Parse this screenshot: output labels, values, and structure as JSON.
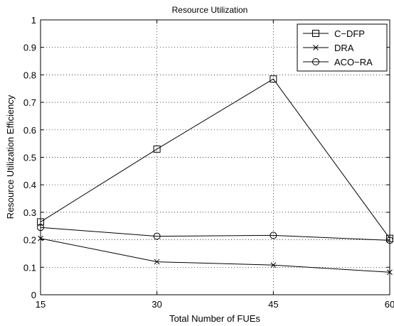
{
  "chart_data": {
    "type": "line",
    "title": "Resource Utilization",
    "xlabel": "Total Number of FUEs",
    "ylabel": "Resource Utilization Efficiency",
    "x": [
      15,
      30,
      45,
      60
    ],
    "xticks": [
      "15",
      "30",
      "45",
      "60"
    ],
    "yticks": [
      "0",
      "0.1",
      "0.2",
      "0.3",
      "0.4",
      "0.5",
      "0.6",
      "0.7",
      "0.8",
      "0.9",
      "1"
    ],
    "xlim": [
      15,
      60
    ],
    "ylim": [
      0,
      1
    ],
    "grid": true,
    "legend_position": "top-right",
    "series": [
      {
        "name": "C−DFP",
        "marker": "square",
        "values": [
          0.265,
          0.53,
          0.785,
          0.205
        ]
      },
      {
        "name": "DRA",
        "marker": "x",
        "values": [
          0.205,
          0.12,
          0.108,
          0.082
        ]
      },
      {
        "name": "ACO−RA",
        "marker": "circle",
        "values": [
          0.245,
          0.213,
          0.216,
          0.198
        ]
      }
    ]
  }
}
